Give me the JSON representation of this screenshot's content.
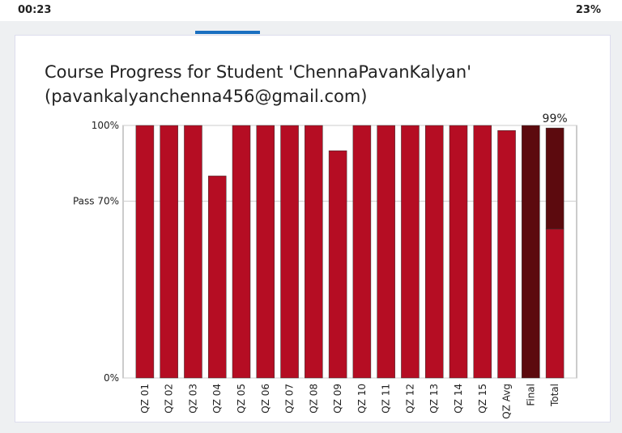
{
  "status_bar": {
    "time": "00:23",
    "battery": "23%"
  },
  "chart_data": {
    "type": "bar",
    "title": "Course Progress for Student 'ChennaPavanKalyan' (pavankalyanchenna456@gmail.com)",
    "categories": [
      "QZ 01",
      "QZ 02",
      "QZ 03",
      "QZ 04",
      "QZ 05",
      "QZ 06",
      "QZ 07",
      "QZ 08",
      "QZ 09",
      "QZ 10",
      "QZ 11",
      "QZ 12",
      "QZ 13",
      "QZ 14",
      "QZ 15",
      "QZ Avg",
      "Final",
      "Total"
    ],
    "series": [
      {
        "color": "#b50d23",
        "values": [
          100,
          100,
          100,
          80,
          100,
          100,
          100,
          100,
          90,
          100,
          100,
          100,
          100,
          100,
          100,
          98,
          null,
          59
        ]
      },
      {
        "color": "#5c0a0e",
        "values": [
          null,
          null,
          null,
          null,
          null,
          null,
          null,
          null,
          null,
          null,
          null,
          null,
          null,
          null,
          null,
          null,
          100,
          40
        ]
      }
    ],
    "stacked": true,
    "annotation": {
      "category": "Total",
      "value": 99,
      "label": "99%"
    },
    "ylim": [
      0,
      100
    ],
    "yticks": [
      {
        "value": 0,
        "label": "0%"
      },
      {
        "value": 70,
        "label": "Pass 70%"
      },
      {
        "value": 100,
        "label": "100%"
      }
    ],
    "grid": true
  }
}
